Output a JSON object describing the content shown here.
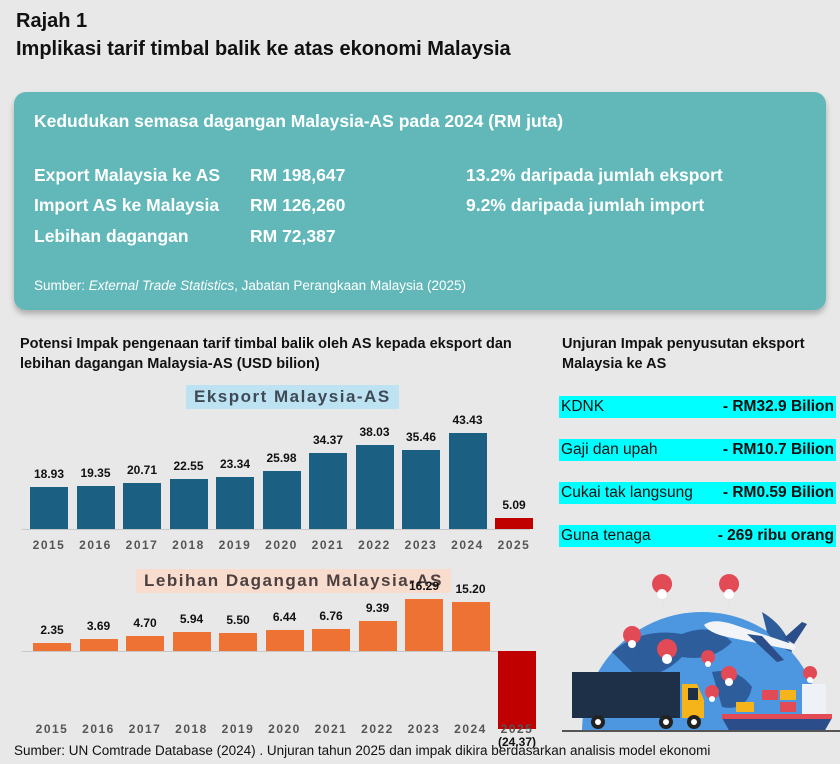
{
  "header": {
    "figure_label": "Rajah 1",
    "title": "Implikasi tarif timbal balik ke atas ekonomi Malaysia"
  },
  "summary_card": {
    "title": "Kedudukan semasa dagangan Malaysia-AS pada 2024 (RM juta)",
    "rows": [
      {
        "label": "Export Malaysia ke AS",
        "value": "RM 198,647",
        "share": "13.2% daripada jumlah eksport"
      },
      {
        "label": "Import AS ke Malaysia",
        "value": "RM 126,260",
        "share": "9.2% daripada jumlah import"
      },
      {
        "label": "Lebihan dagangan",
        "value": "RM 72,387",
        "share": ""
      }
    ],
    "source_prefix": "Sumber: ",
    "source_italic": "External Trade Statistics",
    "source_suffix": ", Jabatan Perangkaan Malaysia (2025)",
    "background_color": "#62b8b9"
  },
  "charts_section": {
    "title": "Potensi Impak pengenaan tarif timbal balik oleh AS kepada eksport dan lebihan dagangan Malaysia-AS (USD bilion)"
  },
  "chart_data": [
    {
      "type": "bar",
      "title": "Eksport Malaysia-AS",
      "xlabel": "",
      "ylabel": "USD bilion",
      "categories": [
        "2015",
        "2016",
        "2017",
        "2018",
        "2019",
        "2020",
        "2021",
        "2022",
        "2023",
        "2024",
        "2025"
      ],
      "values": [
        18.93,
        19.35,
        20.71,
        22.55,
        23.34,
        25.98,
        34.37,
        38.03,
        35.46,
        43.43,
        5.09
      ],
      "labels": [
        "18.93",
        "19.35",
        "20.71",
        "22.55",
        "23.34",
        "25.98",
        "34.37",
        "38.03",
        "35.46",
        "43.43",
        "5.09"
      ],
      "colors": [
        "#1b5f82",
        "#1b5f82",
        "#1b5f82",
        "#1b5f82",
        "#1b5f82",
        "#1b5f82",
        "#1b5f82",
        "#1b5f82",
        "#1b5f82",
        "#1b5f82",
        "#c00000"
      ],
      "grid": false,
      "ylim": [
        0,
        45
      ]
    },
    {
      "type": "bar",
      "title": "Lebihan Dagangan Malaysia-AS",
      "xlabel": "",
      "ylabel": "USD bilion",
      "categories": [
        "2015",
        "2016",
        "2017",
        "2018",
        "2019",
        "2020",
        "2021",
        "2022",
        "2023",
        "2024",
        "2025"
      ],
      "values": [
        2.35,
        3.69,
        4.7,
        5.94,
        5.5,
        6.44,
        6.76,
        9.39,
        16.29,
        15.2,
        -24.37
      ],
      "labels": [
        "2.35",
        "3.69",
        "4.70",
        "5.94",
        "5.50",
        "6.44",
        "6.76",
        "9.39",
        "16.29",
        "15.20",
        "(24.37)"
      ],
      "colors": [
        "#ed7234",
        "#ed7234",
        "#ed7234",
        "#ed7234",
        "#ed7234",
        "#ed7234",
        "#ed7234",
        "#ed7234",
        "#ed7234",
        "#ed7234",
        "#c00000"
      ],
      "grid": false,
      "ylim": [
        -25,
        17
      ]
    }
  ],
  "impact_panel": {
    "title": "Unjuran Impak penyusutan eksport Malaysia ke AS",
    "rows": [
      {
        "label": "KDNK",
        "value": "- RM32.9 Bilion"
      },
      {
        "label": "Gaji dan upah",
        "value": "- RM10.7 Bilion"
      },
      {
        "label": "Cukai tak langsung",
        "value": "- RM0.59 Bilion"
      },
      {
        "label": "Guna tenaga",
        "value": "- 269 ribu orang"
      }
    ],
    "highlight_color": "#00ffff"
  },
  "illustration": {
    "description": "globe with location pins, airplane, truck and cargo ship",
    "icons": [
      "globe-icon",
      "location-pin-icon",
      "airplane-icon",
      "truck-icon",
      "cargo-ship-icon"
    ]
  },
  "footer": {
    "source": "Sumber: UN Comtrade Database (2024) . Unjuran tahun 2025 dan impak dikira berdasarkan analisis model ekonomi"
  }
}
